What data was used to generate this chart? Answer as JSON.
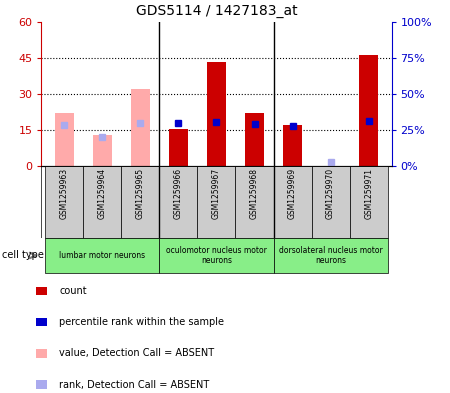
{
  "title": "GDS5114 / 1427183_at",
  "samples": [
    "GSM1259963",
    "GSM1259964",
    "GSM1259965",
    "GSM1259966",
    "GSM1259967",
    "GSM1259968",
    "GSM1259969",
    "GSM1259970",
    "GSM1259971"
  ],
  "count_values": [
    null,
    null,
    null,
    15.5,
    43.0,
    22.0,
    17.0,
    null,
    46.0
  ],
  "rank_values": [
    null,
    null,
    null,
    30.0,
    30.5,
    29.0,
    27.5,
    null,
    31.0
  ],
  "absent_value": [
    22.0,
    13.0,
    32.0,
    null,
    null,
    null,
    null,
    null,
    null
  ],
  "absent_rank": [
    28.0,
    20.0,
    29.5,
    null,
    null,
    null,
    null,
    3.0,
    null
  ],
  "left_ylim": [
    0,
    60
  ],
  "right_ylim": [
    0,
    100
  ],
  "left_yticks": [
    0,
    15,
    30,
    45,
    60
  ],
  "right_yticks": [
    0,
    25,
    50,
    75,
    100
  ],
  "left_yticklabels": [
    "0",
    "15",
    "30",
    "45",
    "60"
  ],
  "right_yticklabels": [
    "0%",
    "25%",
    "50%",
    "75%",
    "100%"
  ],
  "cell_groups": [
    {
      "label": "lumbar motor neurons",
      "start": 0,
      "end": 3
    },
    {
      "label": "oculomotor nucleus motor\nneurons",
      "start": 3,
      "end": 6
    },
    {
      "label": "dorsolateral nucleus motor\nneurons",
      "start": 6,
      "end": 9
    }
  ],
  "bar_color_red": "#cc0000",
  "bar_color_pink": "#ffaaaa",
  "dot_color_blue": "#0000cc",
  "dot_color_lightblue": "#aaaaee",
  "cell_type_bg": "#88ee88",
  "sample_bg": "#cccccc",
  "left_tick_color": "#cc0000",
  "right_tick_color": "#0000cc",
  "legend_items": [
    {
      "label": "count",
      "color": "#cc0000"
    },
    {
      "label": "percentile rank within the sample",
      "color": "#0000cc"
    },
    {
      "label": "value, Detection Call = ABSENT",
      "color": "#ffaaaa"
    },
    {
      "label": "rank, Detection Call = ABSENT",
      "color": "#aaaaee"
    }
  ],
  "bar_width": 0.5,
  "dot_size": 4
}
